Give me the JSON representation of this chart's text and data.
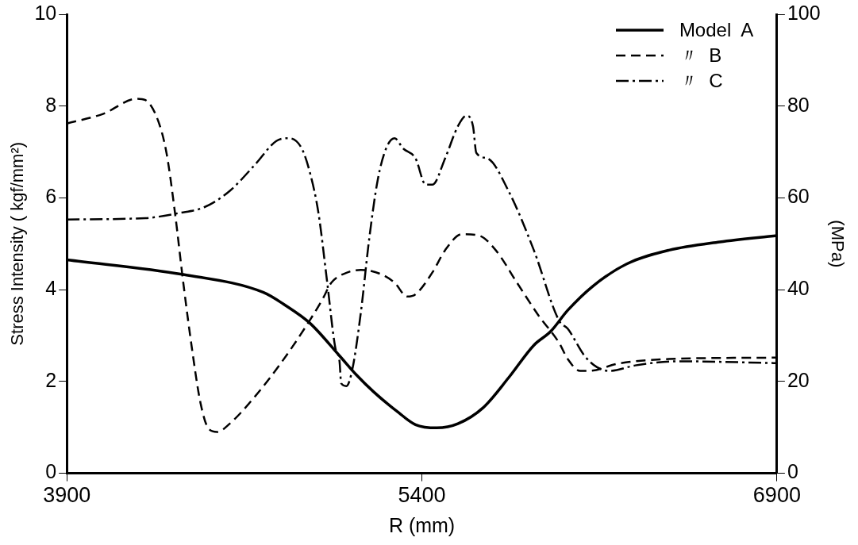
{
  "chart_data": {
    "type": "line",
    "xlabel": "R (mm)",
    "ylabel": "Stress Intensity ( kgf/mm²)",
    "y2label": "(MPa)",
    "xlim": [
      3900,
      6900
    ],
    "xticks": [
      3900,
      5400,
      6900
    ],
    "ylim": [
      0,
      10
    ],
    "yticks": [
      0,
      2,
      4,
      6,
      8,
      10
    ],
    "y2lim": [
      0,
      100
    ],
    "y2ticks": [
      0,
      20,
      40,
      60,
      80,
      100
    ],
    "grid": false,
    "legend": "top right",
    "marker": "none",
    "series": [
      {
        "name": "Model  A",
        "color": "#000000",
        "line_style": "solid",
        "x": [
          3900,
          4392,
          4731,
          4820,
          4927,
          5052,
          5124,
          5195,
          5302,
          5373,
          5463,
          5552,
          5659,
          5766,
          5873,
          5944,
          6016,
          6123,
          6265,
          6444,
          6658,
          6900
        ],
        "values": [
          4.65,
          4.33,
          3.94,
          3.67,
          3.27,
          2.56,
          2.14,
          1.78,
          1.32,
          1.06,
          0.99,
          1.08,
          1.43,
          2.08,
          2.79,
          3.09,
          3.55,
          4.08,
          4.56,
          4.86,
          5.04,
          5.18
        ]
      },
      {
        "name": "〃  B",
        "color": "#000000",
        "line_style": "dashed",
        "x": [
          3900,
          4053,
          4196,
          4232,
          4285,
          4321,
          4357,
          4392,
          4428,
          4464,
          4499,
          4535,
          4588,
          4696,
          4803,
          4910,
          4981,
          5017,
          5088,
          5142,
          5231,
          5285,
          5338,
          5373,
          5445,
          5498,
          5570,
          5641,
          5712,
          5802,
          5891,
          5980,
          6016,
          6069,
          6105,
          6230,
          6444,
          6900
        ],
        "values": [
          7.62,
          7.83,
          8.16,
          8.13,
          7.69,
          6.98,
          5.67,
          4.15,
          2.74,
          1.55,
          0.97,
          0.9,
          1.08,
          1.68,
          2.39,
          3.2,
          3.8,
          4.15,
          4.38,
          4.43,
          4.33,
          4.15,
          3.85,
          3.9,
          4.38,
          4.86,
          5.21,
          5.18,
          4.86,
          4.15,
          3.45,
          2.84,
          2.49,
          2.23,
          2.23,
          2.39,
          2.49,
          2.52
        ]
      },
      {
        "name": "〃  C",
        "color": "#000000",
        "line_style": "dashdot",
        "x": [
          3900,
          4232,
          4374,
          4482,
          4588,
          4696,
          4785,
          4838,
          4892,
          4927,
          4963,
          4999,
          5034,
          5052,
          5059,
          5081,
          5106,
          5142,
          5177,
          5213,
          5249,
          5285,
          5320,
          5373,
          5416,
          5445,
          5498,
          5552,
          5588,
          5616,
          5630,
          5677,
          5766,
          5873,
          5980,
          6016,
          6087,
          6140,
          6194,
          6301,
          6479,
          6900
        ],
        "values": [
          5.53,
          5.56,
          5.67,
          5.8,
          6.15,
          6.73,
          7.24,
          7.3,
          7.08,
          6.55,
          5.67,
          4.2,
          2.74,
          2.44,
          1.96,
          1.9,
          2.26,
          3.5,
          5.09,
          6.38,
          7.08,
          7.3,
          7.08,
          6.86,
          6.29,
          6.29,
          6.86,
          7.56,
          7.79,
          7.56,
          6.98,
          6.86,
          6.15,
          4.86,
          3.32,
          3.15,
          2.56,
          2.31,
          2.23,
          2.35,
          2.44,
          2.4
        ]
      }
    ]
  }
}
